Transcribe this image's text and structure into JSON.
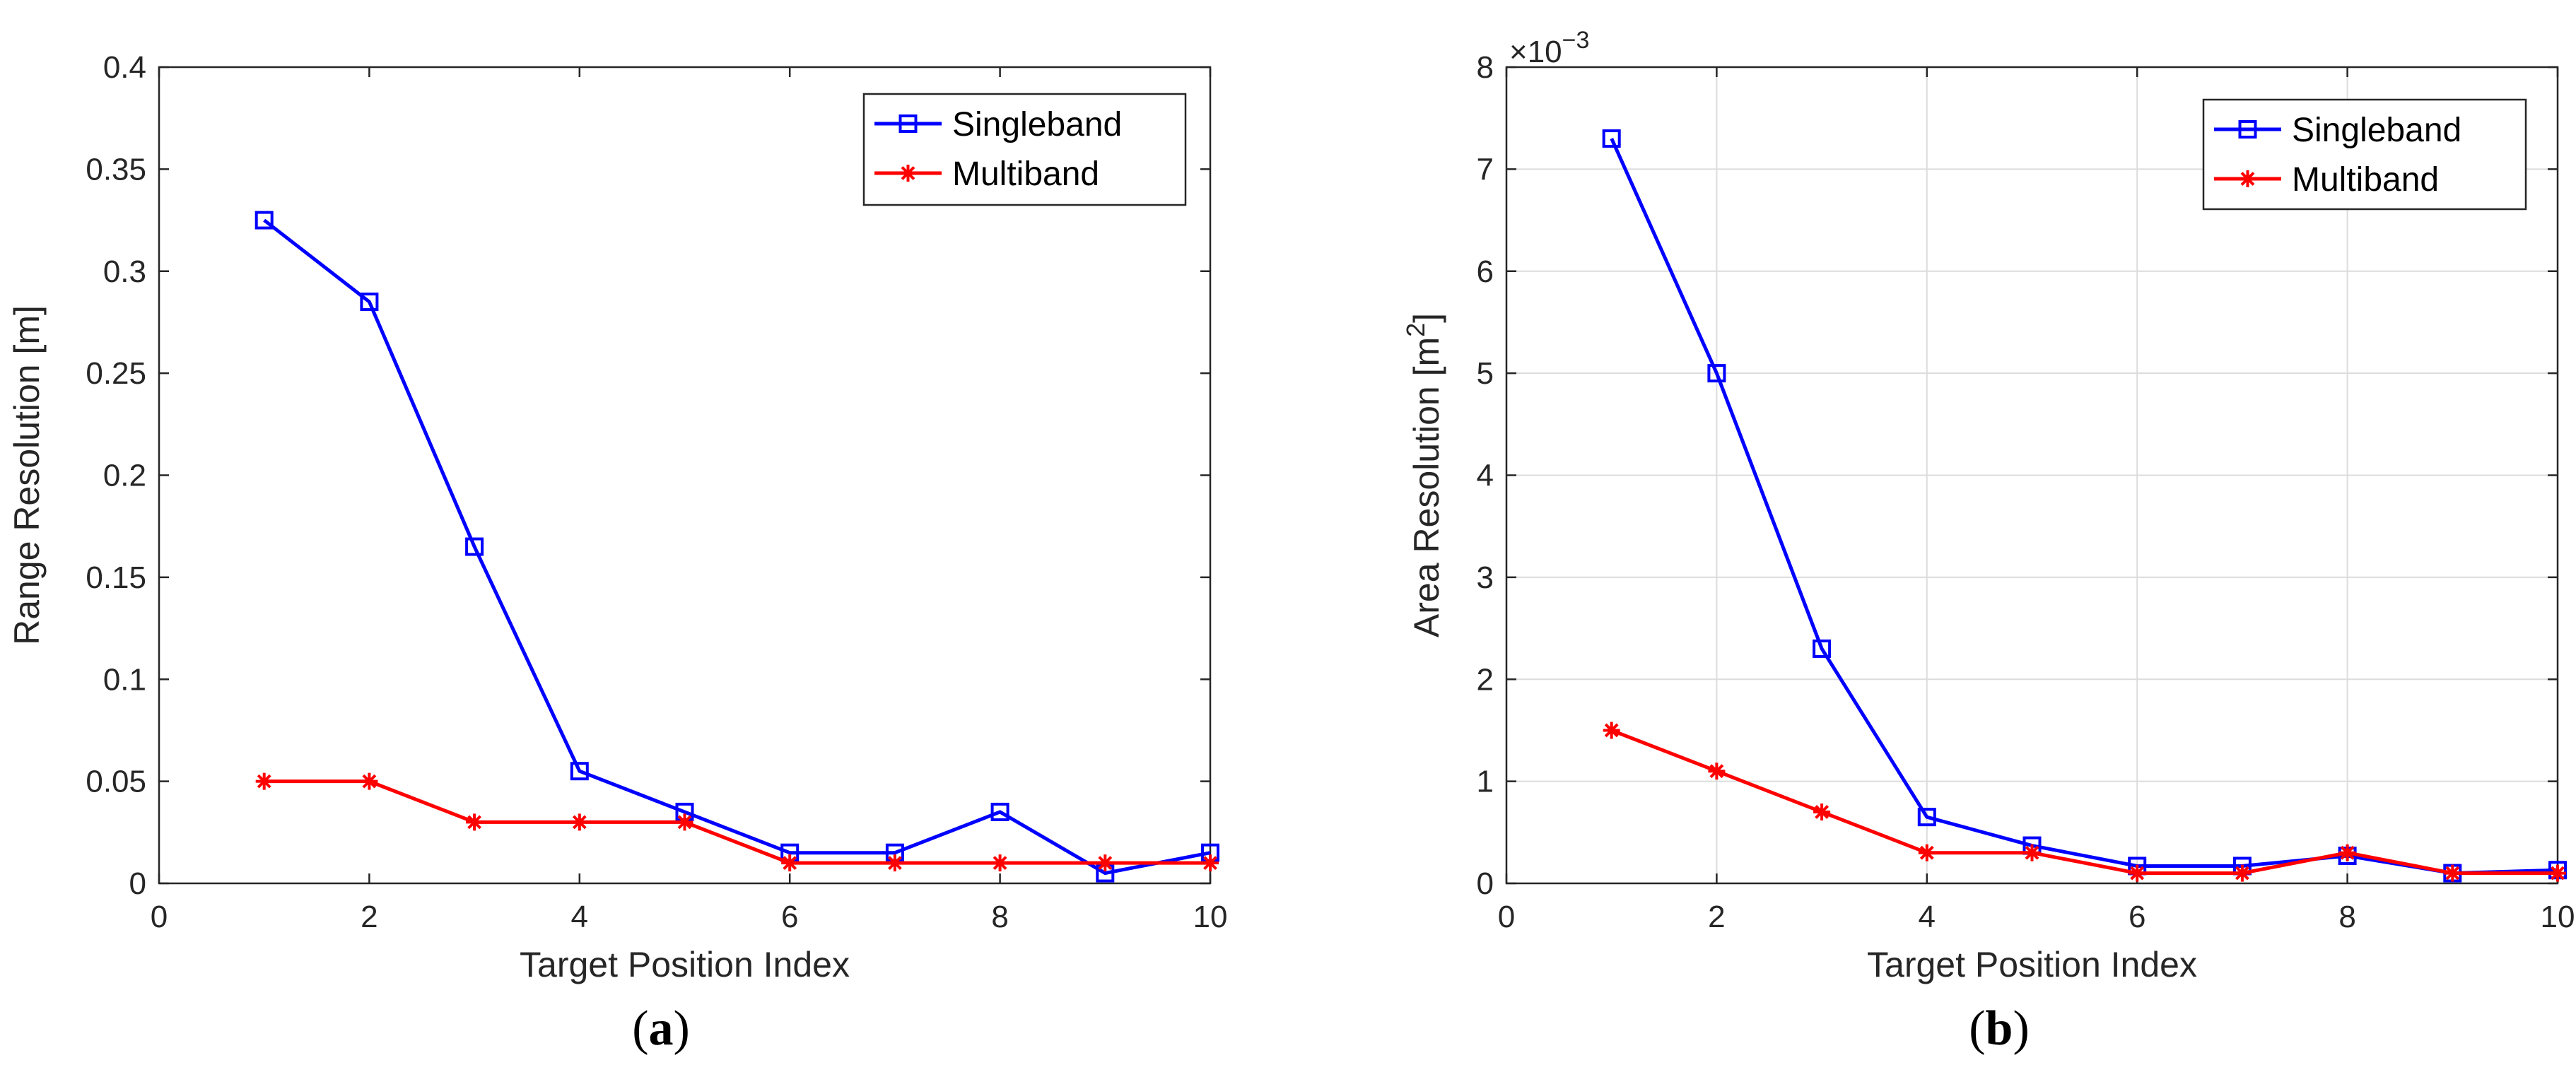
{
  "chart_data": [
    {
      "type": "line",
      "caption": {
        "open": "(",
        "letter": "a",
        "close": ")"
      },
      "xlabel": "Target Position Index",
      "ylabel": "Range Resolution [m]",
      "xlim": [
        0,
        10
      ],
      "ylim": [
        0,
        0.4
      ],
      "xticks": [
        0,
        2,
        4,
        6,
        8,
        10
      ],
      "xtick_labels": [
        "0",
        "2",
        "4",
        "6",
        "8",
        "10"
      ],
      "yticks": [
        0,
        0.05,
        0.1,
        0.15,
        0.2,
        0.25,
        0.3,
        0.35,
        0.4
      ],
      "ytick_labels": [
        "0",
        "0.05",
        "0.1",
        "0.15",
        "0.2",
        "0.25",
        "0.3",
        "0.35",
        "0.4"
      ],
      "exponent_label": "",
      "grid": false,
      "legend_position": "top-right",
      "x": [
        1,
        2,
        3,
        4,
        5,
        6,
        7,
        8,
        9,
        10
      ],
      "series": [
        {
          "name": "Singleband",
          "color": "#0000ff",
          "marker": "square",
          "values": [
            0.325,
            0.285,
            0.165,
            0.055,
            0.035,
            0.015,
            0.015,
            0.035,
            0.005,
            0.015
          ]
        },
        {
          "name": "Multiband",
          "color": "#ff0000",
          "marker": "asterisk",
          "values": [
            0.05,
            0.05,
            0.03,
            0.03,
            0.03,
            0.01,
            0.01,
            0.01,
            0.01,
            0.01
          ]
        }
      ]
    },
    {
      "type": "line",
      "caption": {
        "open": "(",
        "letter": "b",
        "close": ")"
      },
      "xlabel": "Target Position Index",
      "ylabel": "Area Resolution [m",
      "ylabel_superscript": "2",
      "ylabel_suffix": "]",
      "xlim": [
        0,
        10
      ],
      "ylim": [
        0,
        8
      ],
      "xticks": [
        0,
        2,
        4,
        6,
        8,
        10
      ],
      "xtick_labels": [
        "0",
        "2",
        "4",
        "6",
        "8",
        "10"
      ],
      "yticks": [
        0,
        1,
        2,
        3,
        4,
        5,
        6,
        7,
        8
      ],
      "ytick_labels": [
        "0",
        "1",
        "2",
        "3",
        "4",
        "5",
        "6",
        "7",
        "8"
      ],
      "exponent_label": "×10",
      "exponent_power": "−3",
      "value_scale": "×10^-3",
      "grid": true,
      "legend_position": "top-right",
      "x": [
        1,
        2,
        3,
        4,
        5,
        6,
        7,
        8,
        9,
        10
      ],
      "series": [
        {
          "name": "Singleband",
          "color": "#0000ff",
          "marker": "square",
          "values": [
            7.3,
            5.0,
            2.3,
            0.65,
            0.37,
            0.17,
            0.17,
            0.27,
            0.1,
            0.13
          ]
        },
        {
          "name": "Multiband",
          "color": "#ff0000",
          "marker": "asterisk",
          "values": [
            1.5,
            1.1,
            0.7,
            0.3,
            0.3,
            0.1,
            0.1,
            0.3,
            0.1,
            0.1
          ]
        }
      ]
    }
  ]
}
